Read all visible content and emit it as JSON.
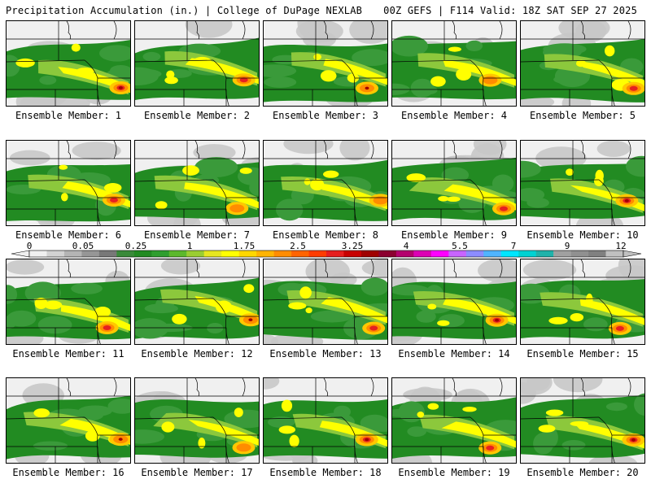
{
  "header": {
    "title": "Precipitation Accumulation (in.) | College of DuPage NEXLAB",
    "run_info": "00Z GEFS | F114 Valid: 18Z SAT SEP 27 2025"
  },
  "panels": [
    {
      "caption": "Ensemble Member: 1"
    },
    {
      "caption": "Ensemble Member: 2"
    },
    {
      "caption": "Ensemble Member: 3"
    },
    {
      "caption": "Ensemble Member: 4"
    },
    {
      "caption": "Ensemble Member: 5"
    },
    {
      "caption": "Ensemble Member: 6"
    },
    {
      "caption": "Ensemble Member: 7"
    },
    {
      "caption": "Ensemble Member: 8"
    },
    {
      "caption": "Ensemble Member: 9"
    },
    {
      "caption": "Ensemble Member: 10"
    },
    {
      "caption": "Ensemble Member: 11"
    },
    {
      "caption": "Ensemble Member: 12"
    },
    {
      "caption": "Ensemble Member: 13"
    },
    {
      "caption": "Ensemble Member: 14"
    },
    {
      "caption": "Ensemble Member: 15"
    },
    {
      "caption": "Ensemble Member: 16"
    },
    {
      "caption": "Ensemble Member: 17"
    },
    {
      "caption": "Ensemble Member: 18"
    },
    {
      "caption": "Ensemble Member: 19"
    },
    {
      "caption": "Ensemble Member: 20"
    }
  ],
  "colorbar": {
    "labels": [
      "0",
      "0.05",
      "0.25",
      "1",
      "1.75",
      "2.5",
      "3.25",
      "4",
      "5.5",
      "7",
      "9",
      "12"
    ],
    "colors": [
      "#f0f0f0",
      "#d2d2d2",
      "#b4b4b4",
      "#969696",
      "#787878",
      "#3a8a3a",
      "#228b22",
      "#2e9e2e",
      "#5cb82c",
      "#9acd32",
      "#e6e620",
      "#ffff00",
      "#ffd700",
      "#ffb400",
      "#ff8c00",
      "#ff6400",
      "#ff3c00",
      "#e61e1e",
      "#c80000",
      "#a00000",
      "#8b0030",
      "#b4006e",
      "#dc00b4",
      "#ff00ff",
      "#c864ff",
      "#8c8cff",
      "#50b4ff",
      "#00e6ff",
      "#00d2d2",
      "#20b2aa",
      "#a0a0a0",
      "#909090",
      "#808080",
      "#c0c0c0"
    ]
  },
  "palette": {
    "background": "#ffffff",
    "no_precip": "#f0f0f0",
    "light_gray": "#c8c8c8",
    "green_dark": "#228b22",
    "green": "#3a9a3a",
    "green_light": "#8cc83c",
    "yellow": "#ffff00",
    "gold": "#ffc800",
    "orange": "#ff8c00",
    "red": "#e62020",
    "dark_red": "#a00000",
    "border_lines": "#000000"
  }
}
